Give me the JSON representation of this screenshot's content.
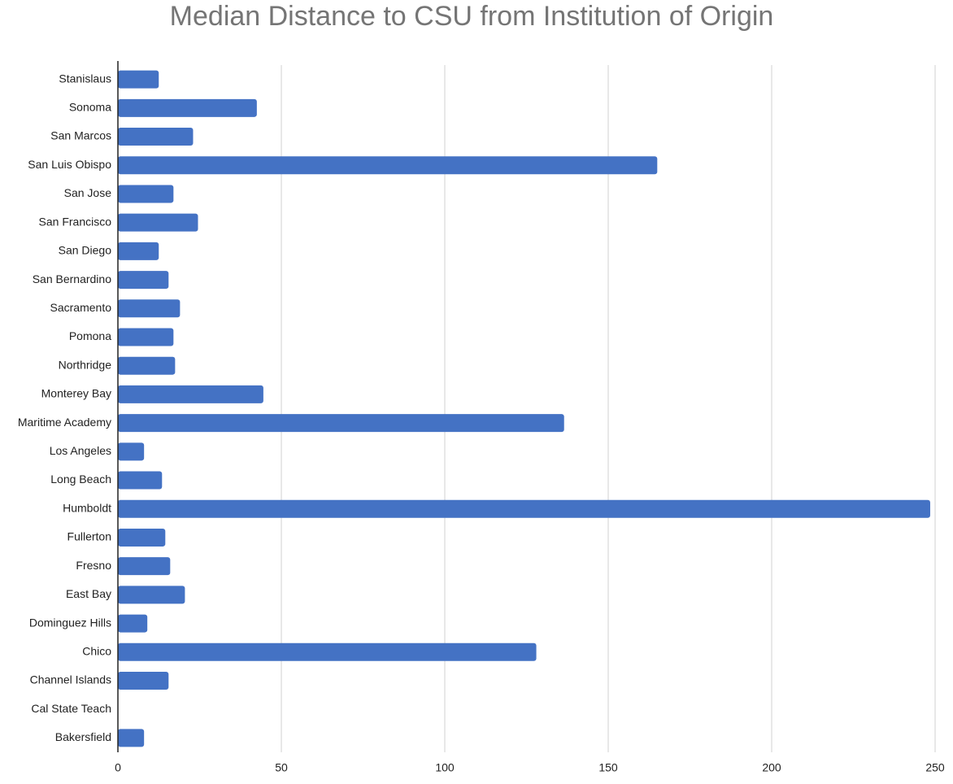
{
  "chart_data": {
    "type": "bar",
    "orientation": "horizontal",
    "title": "Median Distance to CSU from Institution of Origin",
    "categories": [
      "Stanislaus",
      "Sonoma",
      "San Marcos",
      "San Luis Obispo",
      "San Jose",
      "San Francisco",
      "San Diego",
      "San Bernardino",
      "Sacramento",
      "Pomona",
      "Northridge",
      "Monterey Bay",
      "Maritime Academy",
      "Los Angeles",
      "Long Beach",
      "Humboldt",
      "Fullerton",
      "Fresno",
      "East Bay",
      "Dominguez Hills",
      "Chico",
      "Channel Islands",
      "Cal State Teach",
      "Bakersfield"
    ],
    "values": [
      12.5,
      42.5,
      23,
      165,
      17,
      24.5,
      12.5,
      15.5,
      19,
      17,
      17.5,
      44.5,
      136.5,
      8,
      13.5,
      248.5,
      14.5,
      16,
      20.5,
      9,
      128,
      15.5,
      null,
      8
    ],
    "color": "#4472c4",
    "xlim": [
      0,
      250
    ],
    "xticks": [
      0,
      50,
      100,
      150,
      200,
      250
    ],
    "grid": true
  }
}
